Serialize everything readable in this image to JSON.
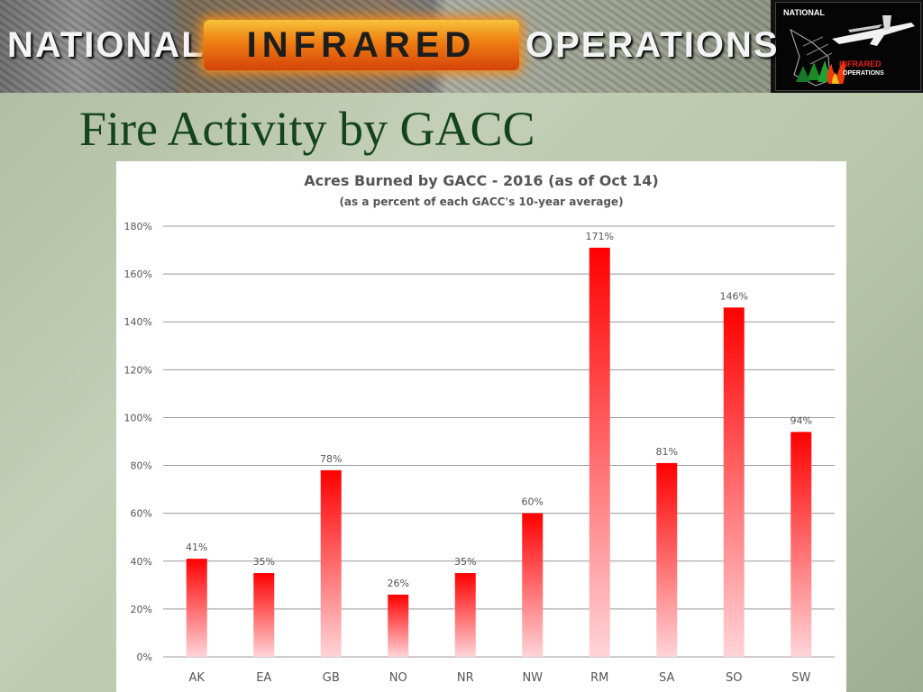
{
  "banner": {
    "word_national": "NATIONAL",
    "word_infrared": "INFRARED",
    "word_operations": "OPERATIONS",
    "logo": {
      "national": "NATIONAL",
      "infrared": "INFRARED",
      "operations": "OPERATIONS",
      "icons": [
        "airplane-icon",
        "trees-icon",
        "fire-icon"
      ]
    }
  },
  "slide": {
    "title": "Fire Activity by GACC"
  },
  "colors": {
    "bar_top": "#ff0000",
    "bar_bottom": "#ffd4d8",
    "title_green": "#14441a",
    "gridline": "#999999"
  },
  "chart_data": {
    "type": "bar",
    "title": "Acres Burned by GACC - 2016 (as of Oct 14)",
    "subtitle": "(as a percent of each GACC's 10-year average)",
    "categories": [
      "AK",
      "EA",
      "GB",
      "NO",
      "NR",
      "NW",
      "RM",
      "SA",
      "SO",
      "SW"
    ],
    "values": [
      41,
      35,
      78,
      26,
      35,
      60,
      171,
      81,
      146,
      94
    ],
    "data_labels": [
      "41%",
      "35%",
      "78%",
      "26%",
      "35%",
      "60%",
      "171%",
      "81%",
      "146%",
      "94%"
    ],
    "y_ticks": [
      0,
      20,
      40,
      60,
      80,
      100,
      120,
      140,
      160,
      180
    ],
    "y_tick_labels": [
      "0%",
      "20%",
      "40%",
      "60%",
      "80%",
      "100%",
      "120%",
      "140%",
      "160%",
      "180%"
    ],
    "ylim": [
      0,
      180
    ],
    "grid": true,
    "legend": "none"
  }
}
